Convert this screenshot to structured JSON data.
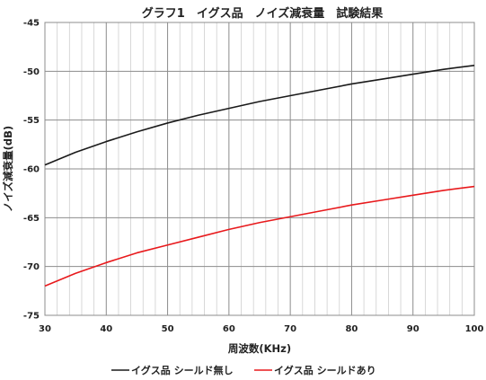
{
  "chart_data": {
    "type": "line",
    "title": "グラフ1　イグス品　ノイズ減衰量　試験結果",
    "xlabel": "周波数(KHz)",
    "ylabel": "ノイズ減衰量(dB)",
    "xlim": [
      30,
      100
    ],
    "ylim": [
      -75,
      -45
    ],
    "xticks": [
      30,
      40,
      50,
      60,
      70,
      80,
      90,
      100
    ],
    "yticks": [
      -45,
      -50,
      -55,
      -60,
      -65,
      -70,
      -75
    ],
    "x_minor_step": 2,
    "grid": true,
    "legend_position": "bottom",
    "series": [
      {
        "name": "イグス品 シールド無し",
        "color": "#1a1a1a",
        "x": [
          30,
          35,
          40,
          45,
          50,
          55,
          60,
          65,
          70,
          75,
          80,
          85,
          90,
          95,
          100
        ],
        "y": [
          -59.6,
          -58.3,
          -57.2,
          -56.2,
          -55.3,
          -54.5,
          -53.8,
          -53.1,
          -52.5,
          -51.9,
          -51.3,
          -50.8,
          -50.3,
          -49.8,
          -49.4
        ]
      },
      {
        "name": "イグス品 シールドあり",
        "color": "#e8191c",
        "x": [
          30,
          35,
          40,
          45,
          50,
          55,
          60,
          65,
          70,
          75,
          80,
          85,
          90,
          95,
          100
        ],
        "y": [
          -72.0,
          -70.7,
          -69.6,
          -68.6,
          -67.8,
          -67.0,
          -66.2,
          -65.5,
          -64.9,
          -64.3,
          -63.7,
          -63.2,
          -62.7,
          -62.2,
          -61.8
        ]
      }
    ]
  }
}
